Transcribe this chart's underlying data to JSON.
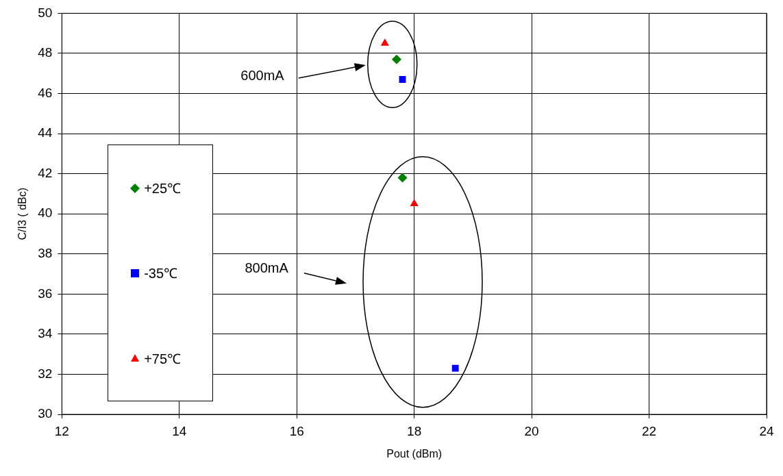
{
  "chart_data": {
    "type": "scatter",
    "xlabel": "Pout (dBm)",
    "ylabel": "C/I3 ( dBc)",
    "xlim": [
      12,
      24
    ],
    "xticks": [
      12,
      14,
      16,
      18,
      20,
      22,
      24
    ],
    "ylim": [
      30,
      50
    ],
    "yticks": [
      30,
      32,
      34,
      36,
      38,
      40,
      42,
      44,
      46,
      48,
      50
    ],
    "grid": true,
    "legend": "left",
    "series": [
      {
        "name": "+25℃",
        "color": "#008000",
        "marker": "diamond",
        "x": [
          17.7,
          17.8
        ],
        "values": [
          47.7,
          41.8
        ]
      },
      {
        "name": "-35℃",
        "color": "#0000ff",
        "marker": "square",
        "x": [
          17.8,
          18.7
        ],
        "values": [
          46.7,
          32.3
        ]
      },
      {
        "name": "+75℃",
        "color": "#ff0000",
        "marker": "triangle",
        "x": [
          17.5,
          18.0
        ],
        "values": [
          48.5,
          40.5
        ]
      }
    ],
    "annotations": [
      "600mA",
      "800mA"
    ]
  }
}
